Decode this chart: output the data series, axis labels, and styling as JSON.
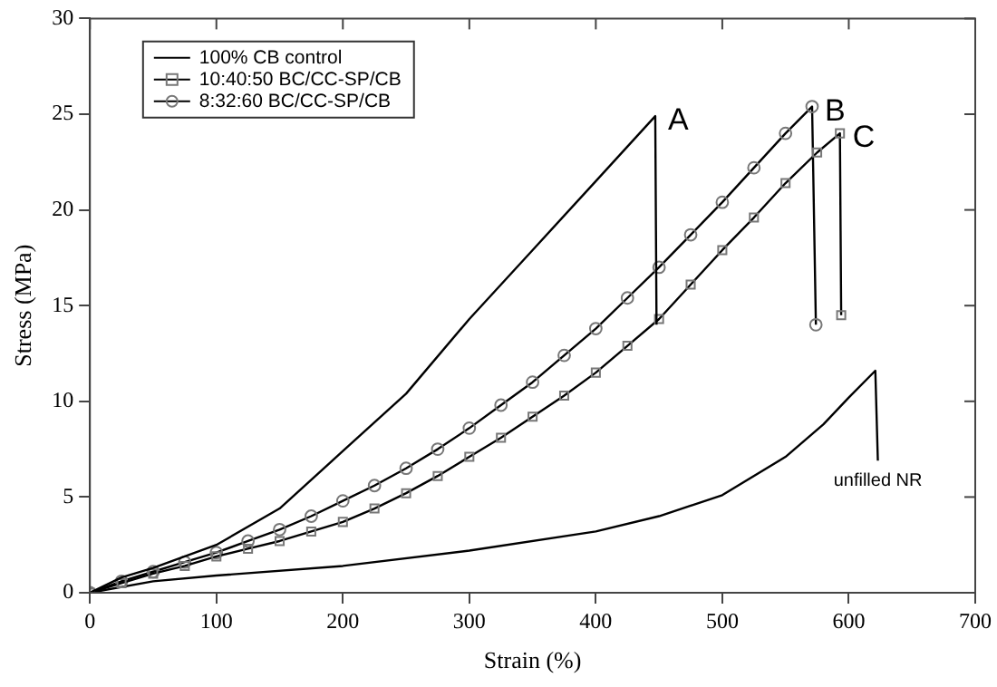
{
  "chart_data": {
    "type": "line",
    "xlabel": "Strain (%)",
    "ylabel": "Stress (MPa)",
    "xlim": [
      0,
      700
    ],
    "ylim": [
      0,
      30
    ],
    "xticks": [
      0,
      100,
      200,
      300,
      400,
      500,
      600,
      700
    ],
    "yticks": [
      0,
      5,
      10,
      15,
      20,
      25,
      30
    ],
    "grid": false,
    "legend": "top left",
    "line_style": "solid",
    "series": [
      {
        "name": "100% CB control",
        "color": "#000000",
        "marker": "none",
        "x": [
          0,
          25,
          50,
          100,
          150,
          200,
          250,
          300,
          350,
          400,
          447,
          448
        ],
        "values": [
          0,
          0.8,
          1.3,
          2.5,
          4.4,
          7.4,
          10.4,
          14.3,
          17.9,
          21.5,
          24.9,
          14.0
        ]
      },
      {
        "name": "10:40:50 BC/CC-SP/CB",
        "color": "#000000",
        "marker": "square",
        "x": [
          0,
          25,
          50,
          75,
          100,
          125,
          150,
          175,
          200,
          225,
          250,
          275,
          300,
          325,
          350,
          375,
          400,
          425,
          450,
          475,
          500,
          525,
          550,
          575,
          593,
          594
        ],
        "values": [
          0,
          0.5,
          1.0,
          1.4,
          1.9,
          2.3,
          2.7,
          3.2,
          3.7,
          4.4,
          5.2,
          6.1,
          7.1,
          8.1,
          9.2,
          10.3,
          11.5,
          12.9,
          14.3,
          16.1,
          17.9,
          19.6,
          21.4,
          23.0,
          24.0,
          14.5
        ]
      },
      {
        "name": "8:32:60 BC/CC-SP/CB",
        "color": "#000000",
        "marker": "circle",
        "x": [
          0,
          25,
          50,
          75,
          100,
          125,
          150,
          175,
          200,
          225,
          250,
          275,
          300,
          325,
          350,
          375,
          400,
          425,
          450,
          475,
          500,
          525,
          550,
          571,
          574
        ],
        "values": [
          0,
          0.6,
          1.1,
          1.6,
          2.1,
          2.7,
          3.3,
          4.0,
          4.8,
          5.6,
          6.5,
          7.5,
          8.6,
          9.8,
          11.0,
          12.4,
          13.8,
          15.4,
          17.0,
          18.7,
          20.4,
          22.2,
          24.0,
          25.4,
          14.0
        ]
      },
      {
        "color": "#000000",
        "marker": "none",
        "x": [
          0,
          50,
          100,
          200,
          300,
          400,
          450,
          500,
          550,
          580,
          600,
          621,
          623
        ],
        "values": [
          0,
          0.6,
          0.9,
          1.4,
          2.2,
          3.2,
          4.0,
          5.1,
          7.1,
          8.8,
          10.2,
          11.6,
          6.9
        ]
      }
    ],
    "annotations": [
      {
        "text": "A",
        "x": 447,
        "y": 24.9
      },
      {
        "text": "B",
        "x": 571,
        "y": 25.4
      },
      {
        "text": "C",
        "x": 593,
        "y": 24.0
      },
      {
        "text": "unfilled NR",
        "x": 623,
        "y": 6.9
      }
    ]
  }
}
